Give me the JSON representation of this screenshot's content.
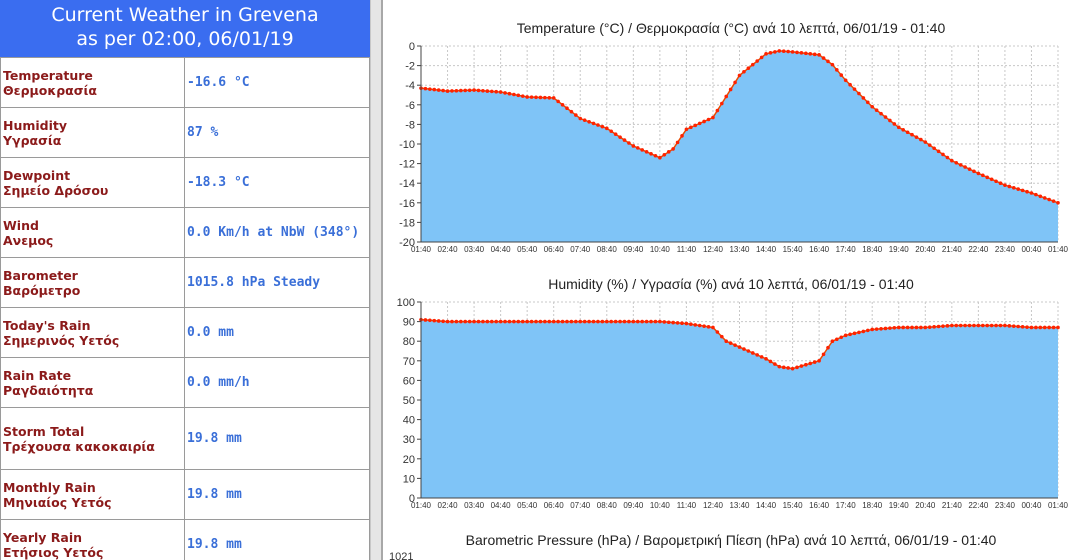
{
  "header": {
    "line1": "Current Weather in Grevena",
    "line2": "as per 02:00, 06/01/19"
  },
  "rows": [
    {
      "label1": "Temperature",
      "label2": "Θερμοκρασία",
      "value": "-16.6 °C"
    },
    {
      "label1": "Humidity",
      "label2": "Υγρασία",
      "value": "87 %"
    },
    {
      "label1": "Dewpoint",
      "label2": "Σημείο Δρόσου",
      "value": "-18.3 °C"
    },
    {
      "label1": "Wind",
      "label2": "Ανεμος",
      "value": "0.0 Km/h at NbW (348°)"
    },
    {
      "label1": "Barometer",
      "label2": "Βαρόμετρο",
      "value": "1015.8 hPa Steady"
    },
    {
      "label1": "Today's Rain",
      "label2": "Σημερινός Υετός",
      "value": "0.0 mm"
    },
    {
      "label1": "Rain Rate",
      "label2": "Ραγδαιότητα",
      "value": "0.0 mm/h"
    },
    {
      "label1": "Storm Total",
      "label2": "Τρέχουσα κακοκαιρία",
      "value": "19.8 mm"
    },
    {
      "label1": "Monthly Rain",
      "label2": "Μηνιαίος Υετός",
      "value": "19.8 mm"
    },
    {
      "label1": "Yearly Rain",
      "label2": "Ετήσιος Υετός",
      "value": "19.8 mm"
    }
  ],
  "chart_data": [
    {
      "type": "area",
      "title": "Temperature (°C) / Θερμοκρασία (°C) ανά 10 λεπτά,  06/01/19 - 01:40",
      "ylim": [
        -20,
        0
      ],
      "yticks": [
        "0",
        "-2",
        "-4",
        "-6",
        "-8",
        "-10",
        "-12",
        "-14",
        "-16",
        "-18",
        "-20"
      ],
      "xticks": [
        "01:40",
        "02:40",
        "03:40",
        "04:40",
        "05:40",
        "06:40",
        "07:40",
        "08:40",
        "09:40",
        "10:40",
        "11:40",
        "12:40",
        "13:40",
        "14:40",
        "15:40",
        "16:40",
        "17:40",
        "18:40",
        "19:40",
        "20:40",
        "21:40",
        "22:40",
        "23:40",
        "00:40",
        "01:40"
      ],
      "x": [
        0,
        1,
        2,
        3,
        4,
        5,
        6,
        7,
        8,
        9,
        9.5,
        10,
        11,
        12,
        13,
        13.5,
        14,
        15,
        15.5,
        16,
        17,
        18,
        19,
        20,
        21,
        22,
        23,
        24
      ],
      "values": [
        -4.3,
        -4.6,
        -4.5,
        -4.7,
        -5.2,
        -5.3,
        -7.4,
        -8.4,
        -10.2,
        -11.4,
        -10.5,
        -8.5,
        -7.3,
        -3.0,
        -0.8,
        -0.5,
        -0.6,
        -0.9,
        -1.9,
        -3.5,
        -6.2,
        -8.3,
        -9.8,
        -11.7,
        -13.0,
        -14.2,
        -15.0,
        -16.0
      ]
    },
    {
      "type": "area",
      "title": "Humidity (%) / Υγρασία (%) ανά 10 λεπτά,  06/01/19 - 01:40",
      "ylim": [
        0,
        100
      ],
      "yticks": [
        "100",
        "90",
        "80",
        "70",
        "60",
        "50",
        "40",
        "30",
        "20",
        "10",
        "0"
      ],
      "xticks": [
        "01:40",
        "02:40",
        "03:40",
        "04:40",
        "05:40",
        "06:40",
        "07:40",
        "08:40",
        "09:40",
        "10:40",
        "11:40",
        "12:40",
        "13:40",
        "14:40",
        "15:40",
        "16:40",
        "17:40",
        "18:40",
        "19:40",
        "20:40",
        "21:40",
        "22:40",
        "23:40",
        "00:40",
        "01:40"
      ],
      "x": [
        0,
        1,
        2,
        3,
        4,
        5,
        6,
        7,
        8,
        9,
        10,
        11,
        11.5,
        12,
        13,
        13.5,
        14,
        15,
        15.5,
        16,
        17,
        18,
        19,
        20,
        21,
        22,
        23,
        24
      ],
      "values": [
        91,
        90,
        90,
        90,
        90,
        90,
        90,
        90,
        90,
        90,
        89,
        87,
        80,
        77,
        71,
        67,
        66,
        70,
        80,
        83,
        86,
        87,
        87,
        88,
        88,
        88,
        87,
        87
      ]
    },
    {
      "type": "area",
      "title": "Barometric Pressure (hPa) / Βαρομετρική Πίεση (hPa) ανά 10 λεπτά,  06/01/19 - 01:40",
      "yticks": [
        "1021"
      ]
    }
  ]
}
